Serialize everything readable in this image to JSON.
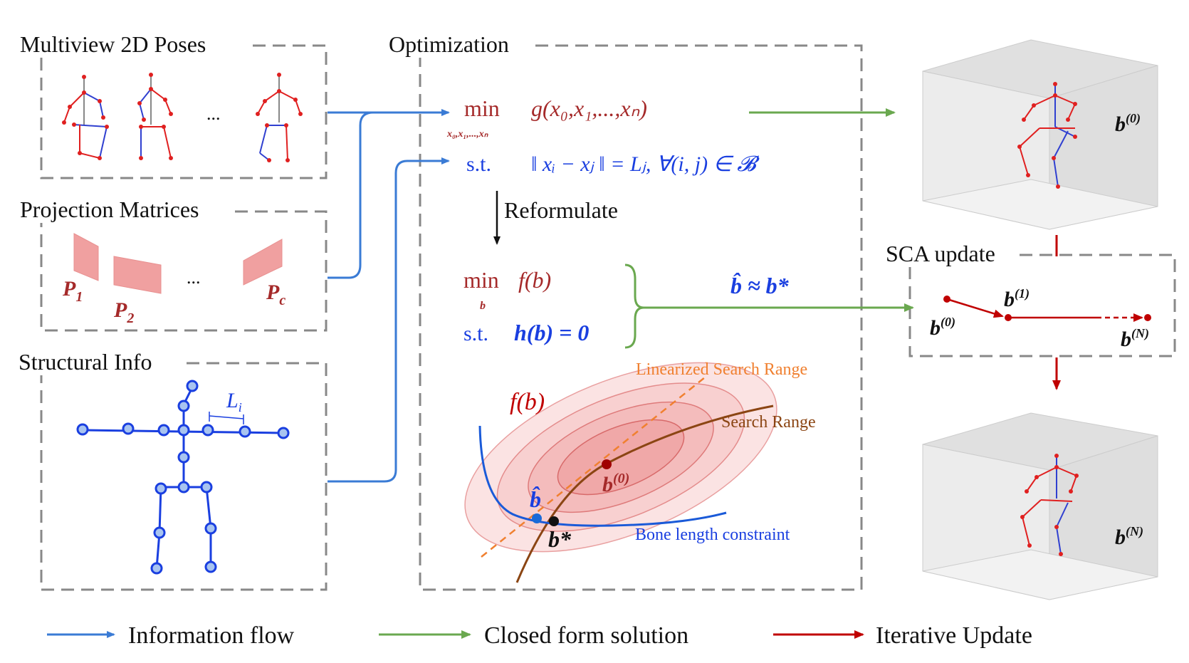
{
  "panels": {
    "multiview_title": "Multiview 2D Poses",
    "projection_title": "Projection Matrices",
    "structural_title": "Structural Info",
    "optimization_title": "Optimization",
    "sca_title": "SCA update"
  },
  "multiview": {
    "ellipsis": "..."
  },
  "projection": {
    "p1": "P",
    "p1_sub": "1",
    "p2": "P",
    "p2_sub": "2",
    "pc": "P",
    "pc_sub": "c",
    "ellipsis": "..."
  },
  "structural": {
    "bone_label": "L",
    "bone_sub": "i"
  },
  "optimization": {
    "min1": "min",
    "min1_sub": "x₀,x₁,...,xₙ",
    "objective1": "g(x₀,x₁,...,xₙ)",
    "st1": "s.t.",
    "constraint1": "‖ xᵢ − xⱼ ‖ = Lⱼ, ∀(i, j) ∈ 𝓑",
    "reformulate": "Reformulate",
    "min2": "min",
    "min2_sub": "b",
    "objective2": "f(b)",
    "st2": "s.t.",
    "constraint2": "h(b) = 0",
    "approx": "b̂ ≈ b*",
    "f_label": "f(b)",
    "linearized_label": "Linearized Search Range",
    "search_label": "Search Range",
    "bone_constraint_label": "Bone length constraint",
    "b0_label": "b",
    "b0_sup": "(0)",
    "bhat_label": "b̂",
    "bstar_label": "b*"
  },
  "results": {
    "top_label": "b",
    "top_sup": "(0)",
    "bottom_label": "b",
    "bottom_sup": "(N)"
  },
  "sca": {
    "b0": "b",
    "b0_sup": "(0)",
    "b1": "b",
    "b1_sup": "(1)",
    "bN": "b",
    "bN_sup": "(N)"
  },
  "legend": {
    "info_flow": "Information flow",
    "closed_form": "Closed form solution",
    "iterative": "Iterative Update"
  },
  "colors": {
    "blue": "#3a7bd5",
    "green": "#6aa84f",
    "red": "#c00000",
    "darkred": "#a52a2a",
    "orange": "#f08030",
    "brown": "#8b4513",
    "skeleton_blue": "#1a3fe0"
  }
}
